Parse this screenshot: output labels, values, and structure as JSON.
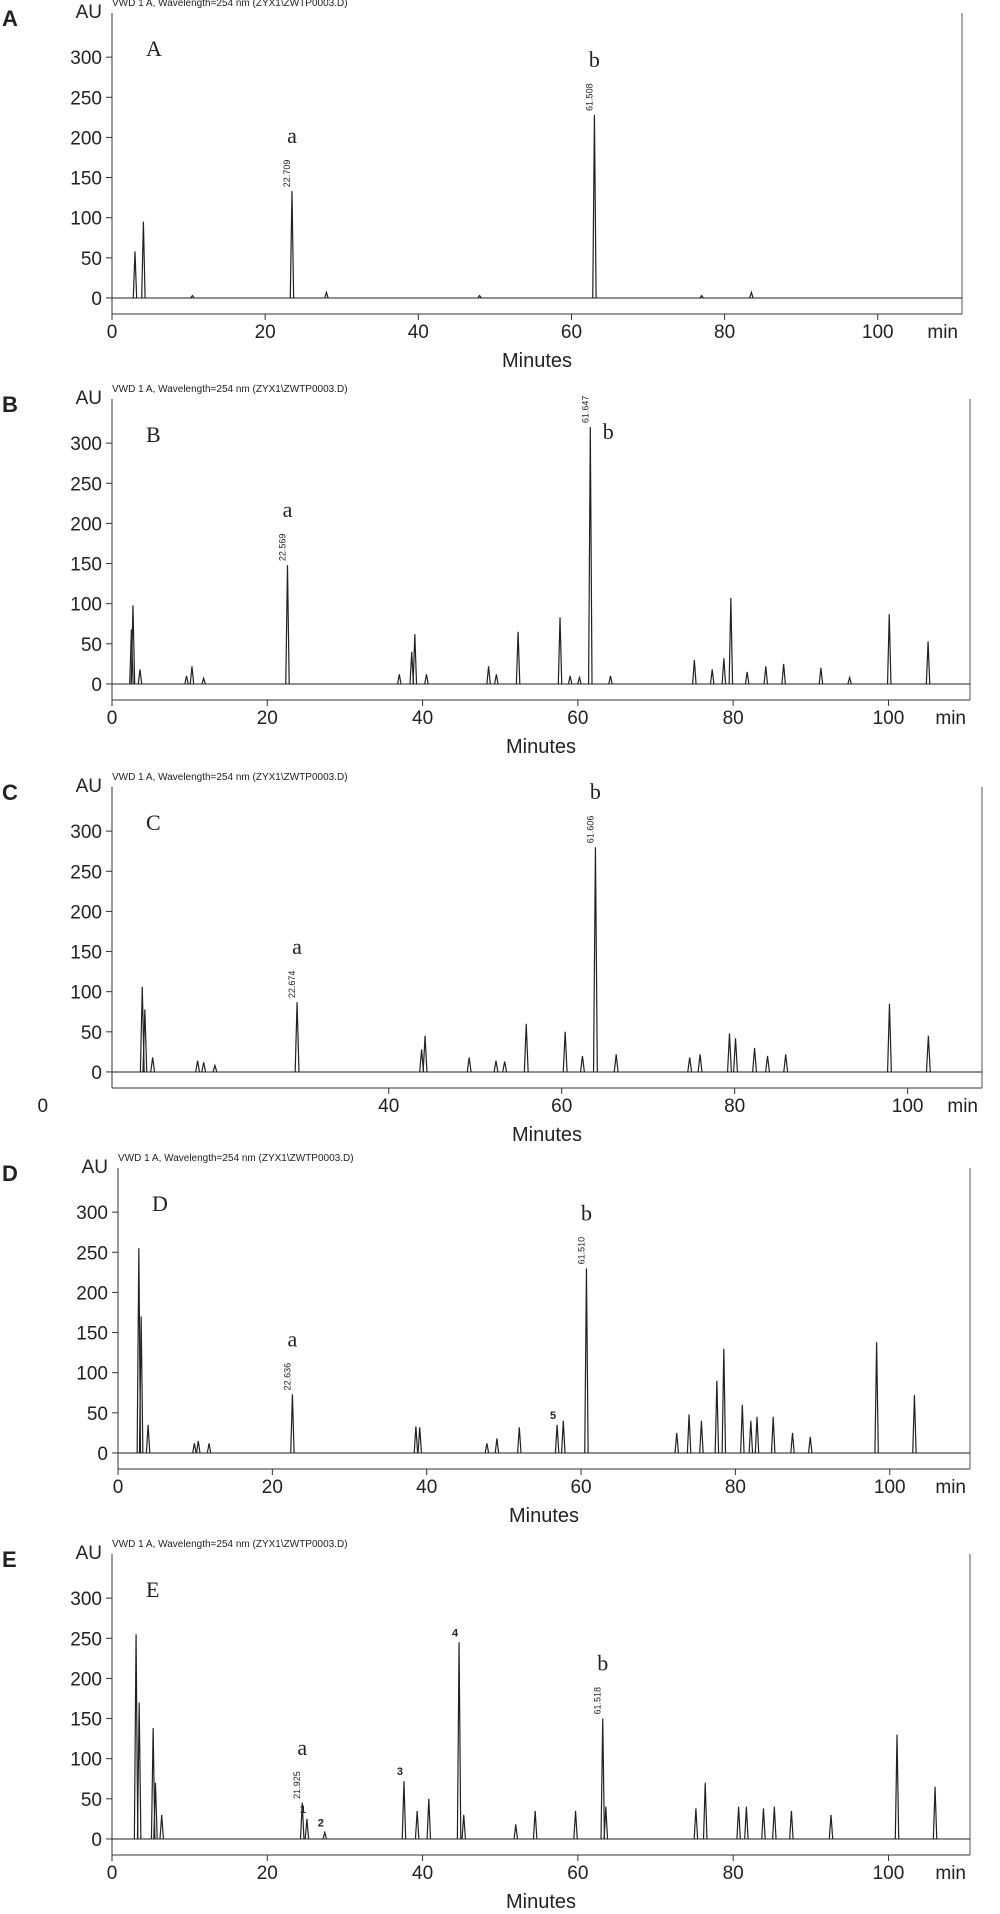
{
  "chart_data": [
    {
      "type": "chromatogram",
      "panel_label": "A",
      "inset_title": "A",
      "header": "VWD 1 A, Wavelength=254 nm (ZYX1\\ZWTP0003.D)",
      "y_unit": "AU",
      "x_unit": "min",
      "xlabel": "Minutes",
      "color": "#222222",
      "xlim": [
        0,
        111
      ],
      "ylim": [
        -20,
        355
      ],
      "xticks": [
        0,
        20,
        40,
        60,
        80,
        100
      ],
      "yticks": [
        0,
        50,
        100,
        150,
        200,
        250,
        300
      ],
      "x": [
        3.0,
        4.1,
        10.5,
        23.5,
        28,
        48,
        63,
        77,
        83.5
      ],
      "values": [
        58,
        95,
        3,
        133,
        7,
        3,
        228,
        3,
        7
      ],
      "peak_labels": [
        null,
        null,
        null,
        "a",
        null,
        null,
        "b",
        null,
        null
      ],
      "rt_labels": [
        null,
        null,
        null,
        "22.709",
        null,
        null,
        "61.508",
        null,
        null
      ]
    },
    {
      "type": "chromatogram",
      "panel_label": "B",
      "inset_title": "B",
      "header": "VWD 1 A, Wavelength=254 nm (ZYX1\\ZWTP0003.D)",
      "y_unit": "AU",
      "x_unit": "min",
      "xlabel": "Minutes",
      "color": "#222222",
      "xlim": [
        0,
        110.5
      ],
      "ylim": [
        -20,
        355
      ],
      "xticks": [
        0,
        20,
        40,
        60,
        80,
        100
      ],
      "yticks": [
        0,
        50,
        100,
        150,
        200,
        250,
        300
      ],
      "x": [
        2.5,
        2.7,
        3.6,
        9.6,
        10.3,
        11.8,
        22.6,
        37,
        38.6,
        39,
        40.5,
        48.5,
        49.5,
        52.3,
        57.7,
        59,
        60.2,
        61.6,
        64.2,
        75,
        77.3,
        78.8,
        79.7,
        81.8,
        84.2,
        86.5,
        91.3,
        95,
        100.1,
        105.1
      ],
      "values": [
        68,
        98,
        18,
        10,
        22,
        7,
        148,
        12,
        40,
        62,
        12,
        22,
        12,
        65,
        83,
        10,
        8,
        320,
        10,
        30,
        18,
        32,
        107,
        15,
        22,
        25,
        20,
        8,
        87,
        53
      ],
      "peak_labels": [
        null,
        null,
        null,
        null,
        null,
        null,
        "a",
        null,
        null,
        null,
        null,
        null,
        null,
        null,
        null,
        null,
        null,
        "b",
        null,
        null,
        null,
        null,
        null,
        null,
        null,
        null,
        null,
        null,
        null,
        null
      ],
      "rt_labels": [
        null,
        null,
        null,
        null,
        null,
        null,
        "22.569",
        null,
        null,
        null,
        null,
        null,
        null,
        null,
        null,
        null,
        null,
        "61.647",
        null,
        null,
        null,
        null,
        null,
        null,
        null,
        null,
        null,
        null,
        null,
        null
      ]
    },
    {
      "type": "chromatogram",
      "panel_label": "C",
      "inset_title": "C",
      "header": "VWD 1 A, Wavelength=254 nm (ZYX1\\ZWTP0003.D)",
      "y_unit": "AU",
      "x_unit": "min",
      "xlabel": "Minutes",
      "color": "#222222",
      "xlim": [
        8,
        108.6
      ],
      "ylim": [
        -20,
        355
      ],
      "xticks": [
        0,
        40,
        60,
        80,
        100
      ],
      "yticks": [
        0,
        50,
        100,
        150,
        200,
        250,
        300
      ],
      "x": [
        11.5,
        11.8,
        12.7,
        17.9,
        18.6,
        19.9,
        29.4,
        43.8,
        44.2,
        49.3,
        52.4,
        53.4,
        55.9,
        60.4,
        62.4,
        63.9,
        66.3,
        74.8,
        76,
        79.4,
        80.1,
        82.3,
        83.8,
        85.9,
        97.9,
        102.4
      ],
      "values": [
        106,
        78,
        18,
        14,
        12,
        8,
        87,
        28,
        45,
        18,
        14,
        13,
        60,
        50,
        20,
        280,
        22,
        18,
        22,
        48,
        42,
        30,
        20,
        22,
        85,
        45
      ],
      "peak_labels": [
        null,
        null,
        null,
        null,
        null,
        null,
        "a",
        null,
        null,
        null,
        null,
        null,
        null,
        null,
        null,
        "b",
        null,
        null,
        null,
        null,
        null,
        null,
        null,
        null,
        null,
        null
      ],
      "rt_labels": [
        null,
        null,
        null,
        null,
        null,
        null,
        "22.674",
        null,
        null,
        null,
        null,
        null,
        null,
        null,
        null,
        "61.606",
        null,
        null,
        null,
        null,
        null,
        null,
        null,
        null,
        null,
        null
      ]
    },
    {
      "type": "chromatogram",
      "panel_label": "D",
      "inset_title": "D",
      "header": "VWD 1 A, Wavelength=254 nm (ZYX1\\ZWTP0003.D)",
      "y_unit": "AU",
      "x_unit": "min",
      "xlabel": "Minutes",
      "color": "#222222",
      "xlim": [
        0,
        110.4
      ],
      "ylim": [
        -20,
        355
      ],
      "xticks": [
        0,
        20,
        40,
        60,
        80,
        100
      ],
      "yticks": [
        0,
        50,
        100,
        150,
        200,
        250,
        300
      ],
      "x": [
        2.7,
        3.0,
        3.9,
        9.9,
        10.4,
        11.8,
        22.6,
        38.6,
        39.1,
        47.8,
        49.1,
        52,
        56.9,
        57.7,
        60.7,
        72.4,
        74,
        75.6,
        77.6,
        78.5,
        80.9,
        82,
        82.8,
        84.9,
        87.4,
        89.7,
        98.3,
        103.2
      ],
      "values": [
        255,
        170,
        35,
        12,
        15,
        12,
        73,
        33,
        32,
        12,
        18,
        32,
        35,
        40,
        230,
        25,
        48,
        40,
        90,
        130,
        60,
        40,
        45,
        45,
        25,
        20,
        138,
        72
      ],
      "peak_labels": [
        null,
        null,
        null,
        null,
        null,
        null,
        "a",
        null,
        null,
        null,
        null,
        null,
        "5",
        null,
        "b",
        null,
        null,
        null,
        null,
        null,
        null,
        null,
        null,
        null,
        null,
        null,
        null,
        null
      ],
      "rt_labels": [
        null,
        null,
        null,
        null,
        null,
        null,
        "22.636",
        null,
        null,
        null,
        null,
        null,
        null,
        null,
        "61.510",
        null,
        null,
        null,
        null,
        null,
        null,
        null,
        null,
        null,
        null,
        null,
        null,
        null
      ]
    },
    {
      "type": "chromatogram",
      "panel_label": "E",
      "inset_title": "E",
      "header": "VWD 1 A, Wavelength=254 nm (ZYX1\\ZWTP0003.D)",
      "y_unit": "AU",
      "x_unit": "min",
      "xlabel": "Minutes",
      "color": "#222222",
      "xlim": [
        0,
        110.5
      ],
      "ylim": [
        -20,
        355
      ],
      "xticks": [
        0,
        20,
        40,
        60,
        80,
        100
      ],
      "yticks": [
        0,
        50,
        100,
        150,
        200,
        250,
        300
      ],
      "x": [
        3.1,
        3.5,
        5.3,
        5.6,
        6.4,
        24.5,
        25.1,
        27.4,
        37.6,
        39.3,
        40.8,
        44.7,
        45.3,
        52,
        54.5,
        59.7,
        63.2,
        63.6,
        75.2,
        76.4,
        80.7,
        81.7,
        83.9,
        85.3,
        87.5,
        92.6,
        101.1,
        106
      ],
      "values": [
        255,
        170,
        138,
        70,
        30,
        45,
        25,
        8,
        72,
        35,
        50,
        245,
        30,
        18,
        35,
        35,
        150,
        40,
        38,
        70,
        40,
        40,
        38,
        40,
        35,
        30,
        130,
        65
      ],
      "peak_labels": [
        null,
        null,
        null,
        null,
        null,
        "a",
        "1",
        "2",
        "3",
        null,
        null,
        "4",
        null,
        null,
        null,
        null,
        "b",
        null,
        null,
        null,
        null,
        null,
        null,
        null,
        null,
        null,
        null,
        null
      ],
      "rt_labels": [
        null,
        null,
        null,
        null,
        null,
        "21.925",
        null,
        null,
        null,
        null,
        null,
        null,
        null,
        null,
        null,
        null,
        "61.518",
        null,
        null,
        null,
        null,
        null,
        null,
        null,
        null,
        null,
        null,
        null
      ]
    }
  ]
}
